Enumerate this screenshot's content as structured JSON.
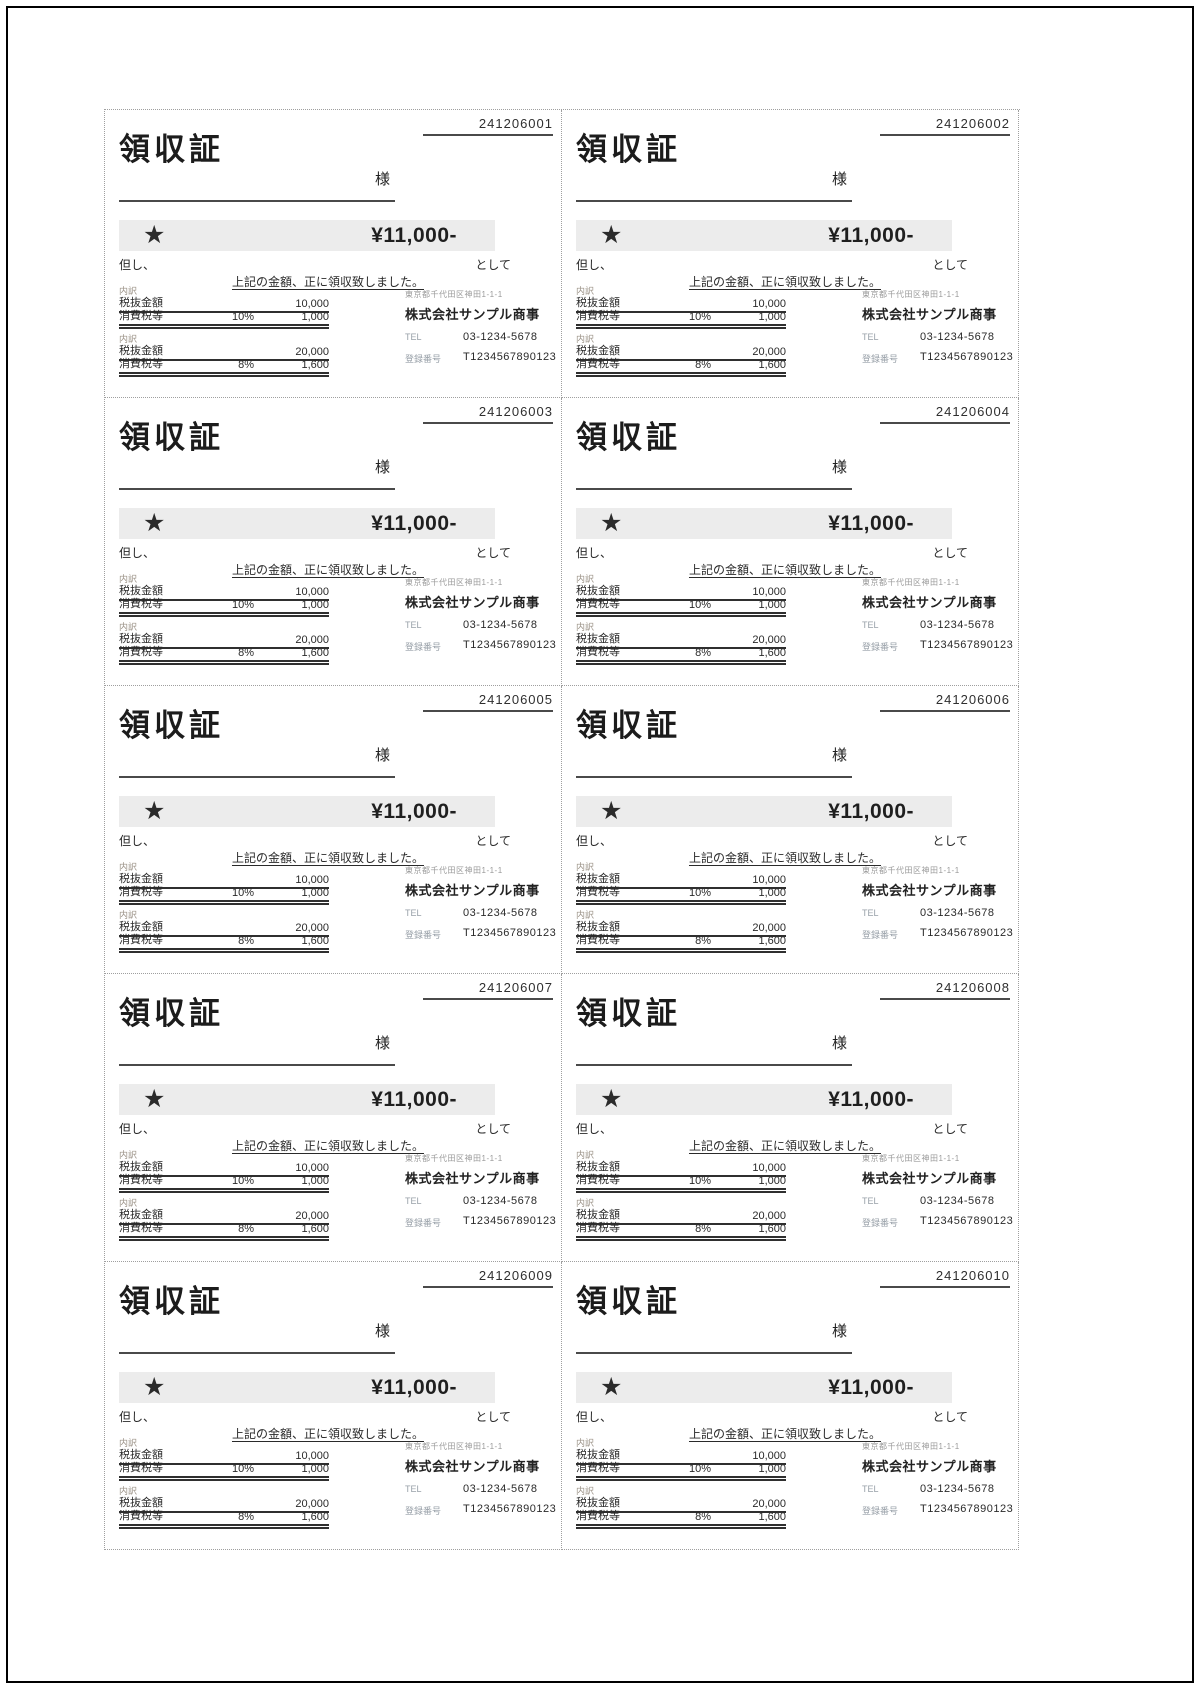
{
  "page": {
    "receipt_count": 10,
    "serials": [
      "241206001",
      "241206002",
      "241206003",
      "241206004",
      "241206005",
      "241206006",
      "241206007",
      "241206008",
      "241206009",
      "241206010"
    ]
  },
  "colors": {
    "amount_band_bg": "#ececec",
    "text": "#2a2a2a",
    "muted_label": "#9a9186"
  },
  "receipt_template": {
    "title": "領収証",
    "honorific": "様",
    "star_icon": "★",
    "amount": "¥11,000-",
    "proviso_label": "但し、",
    "as_label": "として",
    "confirmation": "上記の金額、正に領収致しました。",
    "breakdown_label": "内訳",
    "tables": [
      {
        "rows": [
          {
            "label": "税抜金額",
            "rate": "",
            "amount": "10,000"
          },
          {
            "label": "消費税等",
            "rate": "10%",
            "amount": "1,000"
          }
        ]
      },
      {
        "rows": [
          {
            "label": "税抜金額",
            "rate": "",
            "amount": "20,000"
          },
          {
            "label": "消費税等",
            "rate": "8%",
            "amount": "1,600"
          }
        ]
      }
    ],
    "issuer": {
      "address": "東京都千代田区神田1-1-1",
      "company": "株式会社サンプル商事",
      "tel_label": "TEL",
      "tel": "03-1234-5678",
      "reg_label": "登録番号",
      "reg_number": "T1234567890123"
    }
  }
}
